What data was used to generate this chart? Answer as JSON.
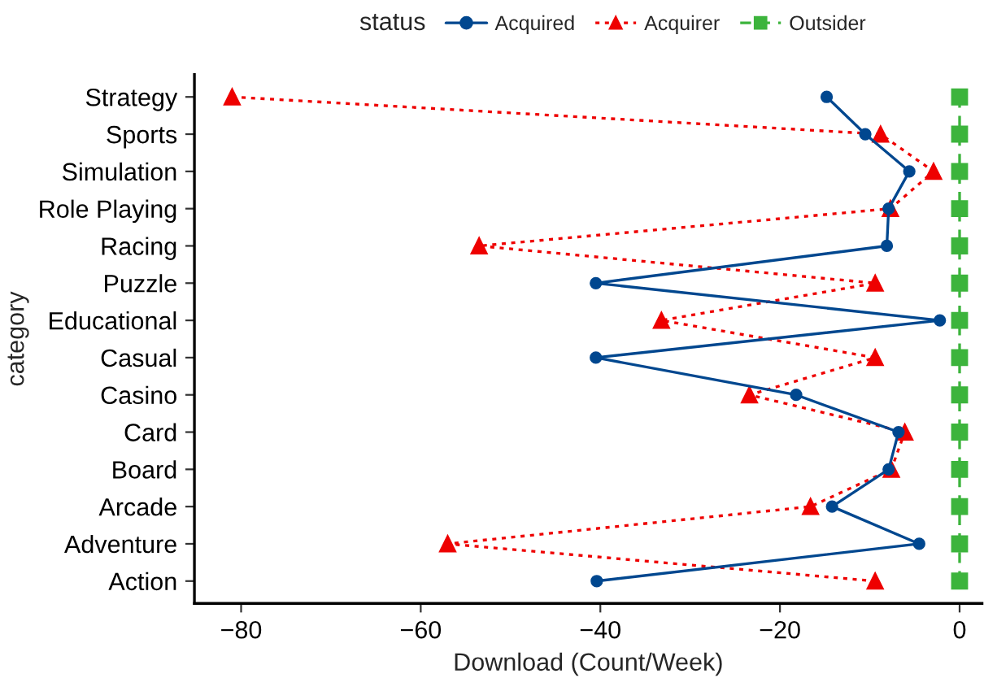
{
  "chart_data": {
    "type": "line",
    "orientation": "horizontal",
    "xlabel": "Download (Count/Week)",
    "ylabel": "category",
    "legend_title": "status",
    "legend": "top",
    "categories": [
      "Strategy",
      "Sports",
      "Simulation",
      "Role Playing",
      "Racing",
      "Puzzle",
      "Educational",
      "Casual",
      "Casino",
      "Card",
      "Board",
      "Arcade",
      "Adventure",
      "Action"
    ],
    "series": [
      {
        "name": "Acquired",
        "color": "#00478f",
        "marker": "circle",
        "line_style": "solid",
        "values": [
          -14.8,
          -10.5,
          -5.6,
          -7.9,
          -8.1,
          -40.5,
          -2.2,
          -40.5,
          -18.2,
          -6.8,
          -7.9,
          -14.2,
          -4.5,
          -40.4
        ]
      },
      {
        "name": "Acquirer",
        "color": "#ee0000",
        "marker": "triangle",
        "line_style": "dotted",
        "values": [
          -81,
          -8.8,
          -2.9,
          -7.7,
          -53.5,
          -9.4,
          -33.2,
          -9.4,
          -23.4,
          -6.1,
          -7.6,
          -16.6,
          -57,
          -9.4
        ]
      },
      {
        "name": "Outsider",
        "color": "#3cb43c",
        "marker": "square",
        "line_style": "dashed",
        "values": [
          0,
          0,
          0,
          0,
          0,
          0,
          0,
          0,
          0,
          0,
          0,
          0,
          0,
          0
        ]
      }
    ],
    "xlim": [
      -85.2,
      2.5
    ],
    "xticks": [
      {
        "value": -80,
        "label": "−80"
      },
      {
        "value": -60,
        "label": "−60"
      },
      {
        "value": -40,
        "label": "−40"
      },
      {
        "value": -20,
        "label": "−20"
      },
      0
    ],
    "grid": false
  }
}
